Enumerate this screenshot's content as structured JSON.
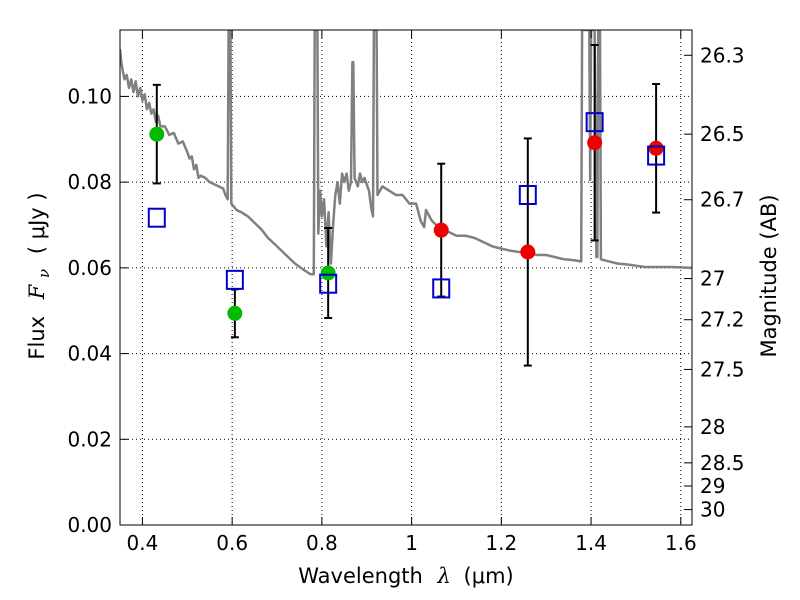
{
  "chart_data": {
    "type": "scatter",
    "title": "",
    "xlabel_text": "Wavelength",
    "xlabel_symbol": "λ",
    "xlabel_unit": "(μm)",
    "ylabel_text": "Flux",
    "ylabel_symbol": "F",
    "ylabel_sub": "ν",
    "ylabel_unit": "( μJy )",
    "ylabel_right": "Magnitude (AB)",
    "xlim": [
      0.35,
      1.625
    ],
    "ylim": [
      0.0,
      0.1155
    ],
    "grid": true,
    "x_ticks": [
      0.4,
      0.6,
      0.8,
      1.0,
      1.2,
      1.4,
      1.6
    ],
    "x_tick_labels": [
      "0.4",
      "0.6",
      "0.8",
      "1",
      "1.2",
      "1.4",
      "1.6"
    ],
    "y_ticks": [
      0.0,
      0.02,
      0.04,
      0.06,
      0.08,
      0.1
    ],
    "y_tick_labels": [
      "0.00",
      "0.02",
      "0.04",
      "0.06",
      "0.08",
      "0.10"
    ],
    "mag_ticks": [
      {
        "label": "26.3",
        "flux": 0.1096
      },
      {
        "label": "26.5",
        "flux": 0.0912
      },
      {
        "label": "26.7",
        "flux": 0.0759
      },
      {
        "label": "27",
        "flux": 0.0575
      },
      {
        "label": "27.2",
        "flux": 0.0479
      },
      {
        "label": "27.5",
        "flux": 0.0363
      },
      {
        "label": "28",
        "flux": 0.0229
      },
      {
        "label": "28.5",
        "flux": 0.0145
      },
      {
        "label": "29",
        "flux": 0.0091
      },
      {
        "label": "30",
        "flux": 0.0036
      }
    ],
    "colors": {
      "green": "#00bb00",
      "red": "#ee0000",
      "model": "#0000cc",
      "spectrum": "#808080",
      "errorbar": "#000000"
    },
    "series": [
      {
        "marker": "circle-green",
        "points": [
          {
            "x": 0.432,
            "y": 0.0912,
            "err_lo": 0.0115,
            "err_hi": 0.0115
          },
          {
            "x": 0.606,
            "y": 0.0494,
            "err_lo": 0.0056,
            "err_hi": 0.0056
          },
          {
            "x": 0.814,
            "y": 0.0588,
            "err_lo": 0.0105,
            "err_hi": 0.0105
          }
        ]
      },
      {
        "marker": "circle-red",
        "points": [
          {
            "x": 1.066,
            "y": 0.0688,
            "err_lo": 0.0155,
            "err_hi": 0.0155
          },
          {
            "x": 1.259,
            "y": 0.0637,
            "err_lo": 0.0265,
            "err_hi": 0.0265
          },
          {
            "x": 1.408,
            "y": 0.0892,
            "err_lo": 0.0228,
            "err_hi": 0.0228
          },
          {
            "x": 1.545,
            "y": 0.0879,
            "err_lo": 0.015,
            "err_hi": 0.015
          }
        ]
      },
      {
        "marker": "square-blue",
        "points": [
          {
            "x": 0.432,
            "y": 0.0717
          },
          {
            "x": 0.606,
            "y": 0.0572
          },
          {
            "x": 0.814,
            "y": 0.0563
          },
          {
            "x": 1.066,
            "y": 0.0552
          },
          {
            "x": 1.259,
            "y": 0.077
          },
          {
            "x": 1.408,
            "y": 0.094
          },
          {
            "x": 1.545,
            "y": 0.0862
          }
        ]
      },
      {
        "marker": "line-spectrum",
        "points": [
          {
            "x": 0.35,
            "y": 0.111
          },
          {
            "x": 0.353,
            "y": 0.108
          },
          {
            "x": 0.356,
            "y": 0.106
          },
          {
            "x": 0.36,
            "y": 0.104
          },
          {
            "x": 0.365,
            "y": 0.105
          },
          {
            "x": 0.37,
            "y": 0.102
          },
          {
            "x": 0.375,
            "y": 0.104
          },
          {
            "x": 0.38,
            "y": 0.101
          },
          {
            "x": 0.385,
            "y": 0.1035
          },
          {
            "x": 0.39,
            "y": 0.1
          },
          {
            "x": 0.395,
            "y": 0.102
          },
          {
            "x": 0.4,
            "y": 0.099
          },
          {
            "x": 0.405,
            "y": 0.1005
          },
          {
            "x": 0.41,
            "y": 0.097
          },
          {
            "x": 0.415,
            "y": 0.0985
          },
          {
            "x": 0.42,
            "y": 0.096
          },
          {
            "x": 0.425,
            "y": 0.097
          },
          {
            "x": 0.43,
            "y": 0.094
          },
          {
            "x": 0.435,
            "y": 0.0955
          },
          {
            "x": 0.44,
            "y": 0.093
          },
          {
            "x": 0.45,
            "y": 0.093
          },
          {
            "x": 0.46,
            "y": 0.091
          },
          {
            "x": 0.47,
            "y": 0.0915
          },
          {
            "x": 0.48,
            "y": 0.089
          },
          {
            "x": 0.49,
            "y": 0.0895
          },
          {
            "x": 0.5,
            "y": 0.087
          },
          {
            "x": 0.505,
            "y": 0.0855
          },
          {
            "x": 0.51,
            "y": 0.086
          },
          {
            "x": 0.515,
            "y": 0.083
          },
          {
            "x": 0.52,
            "y": 0.084
          },
          {
            "x": 0.525,
            "y": 0.081
          },
          {
            "x": 0.53,
            "y": 0.0815
          },
          {
            "x": 0.54,
            "y": 0.081
          },
          {
            "x": 0.55,
            "y": 0.08
          },
          {
            "x": 0.56,
            "y": 0.0795
          },
          {
            "x": 0.57,
            "y": 0.079
          },
          {
            "x": 0.58,
            "y": 0.0785
          },
          {
            "x": 0.585,
            "y": 0.077
          },
          {
            "x": 0.59,
            "y": 0.076
          },
          {
            "x": 0.592,
            "y": 0.1155
          },
          {
            "x": 0.596,
            "y": 0.1155
          },
          {
            "x": 0.598,
            "y": 0.075
          },
          {
            "x": 0.61,
            "y": 0.0735
          },
          {
            "x": 0.62,
            "y": 0.073
          },
          {
            "x": 0.635,
            "y": 0.072
          },
          {
            "x": 0.65,
            "y": 0.0705
          },
          {
            "x": 0.665,
            "y": 0.069
          },
          {
            "x": 0.68,
            "y": 0.067
          },
          {
            "x": 0.7,
            "y": 0.065
          },
          {
            "x": 0.72,
            "y": 0.063
          },
          {
            "x": 0.74,
            "y": 0.061
          },
          {
            "x": 0.76,
            "y": 0.0595
          },
          {
            "x": 0.775,
            "y": 0.0585
          },
          {
            "x": 0.782,
            "y": 0.0585
          },
          {
            "x": 0.784,
            "y": 0.1155
          },
          {
            "x": 0.79,
            "y": 0.1155
          },
          {
            "x": 0.792,
            "y": 0.068
          },
          {
            "x": 0.796,
            "y": 0.078
          },
          {
            "x": 0.8,
            "y": 0.072
          },
          {
            "x": 0.805,
            "y": 0.076
          },
          {
            "x": 0.81,
            "y": 0.065
          },
          {
            "x": 0.815,
            "y": 0.073
          },
          {
            "x": 0.82,
            "y": 0.061
          },
          {
            "x": 0.825,
            "y": 0.07
          },
          {
            "x": 0.83,
            "y": 0.077
          },
          {
            "x": 0.835,
            "y": 0.08
          },
          {
            "x": 0.84,
            "y": 0.075
          },
          {
            "x": 0.845,
            "y": 0.082
          },
          {
            "x": 0.85,
            "y": 0.08
          },
          {
            "x": 0.855,
            "y": 0.082
          },
          {
            "x": 0.86,
            "y": 0.078
          },
          {
            "x": 0.865,
            "y": 0.08
          },
          {
            "x": 0.868,
            "y": 0.108
          },
          {
            "x": 0.87,
            "y": 0.108
          },
          {
            "x": 0.873,
            "y": 0.081
          },
          {
            "x": 0.88,
            "y": 0.079
          },
          {
            "x": 0.885,
            "y": 0.082
          },
          {
            "x": 0.89,
            "y": 0.08
          },
          {
            "x": 0.895,
            "y": 0.081
          },
          {
            "x": 0.9,
            "y": 0.0795
          },
          {
            "x": 0.905,
            "y": 0.078
          },
          {
            "x": 0.91,
            "y": 0.074
          },
          {
            "x": 0.914,
            "y": 0.072
          },
          {
            "x": 0.916,
            "y": 0.1155
          },
          {
            "x": 0.922,
            "y": 0.1155
          },
          {
            "x": 0.924,
            "y": 0.077
          },
          {
            "x": 0.935,
            "y": 0.079
          },
          {
            "x": 0.95,
            "y": 0.078
          },
          {
            "x": 0.965,
            "y": 0.077
          },
          {
            "x": 0.98,
            "y": 0.077
          },
          {
            "x": 0.995,
            "y": 0.075
          },
          {
            "x": 1.01,
            "y": 0.075
          },
          {
            "x": 1.02,
            "y": 0.071
          },
          {
            "x": 1.028,
            "y": 0.0695
          },
          {
            "x": 1.032,
            "y": 0.0735
          },
          {
            "x": 1.045,
            "y": 0.071
          },
          {
            "x": 1.06,
            "y": 0.0695
          },
          {
            "x": 1.07,
            "y": 0.069
          },
          {
            "x": 1.08,
            "y": 0.0685
          },
          {
            "x": 1.1,
            "y": 0.0675
          },
          {
            "x": 1.12,
            "y": 0.0675
          },
          {
            "x": 1.14,
            "y": 0.067
          },
          {
            "x": 1.16,
            "y": 0.066
          },
          {
            "x": 1.18,
            "y": 0.065
          },
          {
            "x": 1.2,
            "y": 0.0645
          },
          {
            "x": 1.22,
            "y": 0.064
          },
          {
            "x": 1.24,
            "y": 0.0637
          },
          {
            "x": 1.26,
            "y": 0.0635
          },
          {
            "x": 1.28,
            "y": 0.063
          },
          {
            "x": 1.3,
            "y": 0.063
          },
          {
            "x": 1.32,
            "y": 0.0625
          },
          {
            "x": 1.34,
            "y": 0.062
          },
          {
            "x": 1.36,
            "y": 0.0618
          },
          {
            "x": 1.378,
            "y": 0.0615
          },
          {
            "x": 1.38,
            "y": 0.1155
          },
          {
            "x": 1.396,
            "y": 0.1155
          },
          {
            "x": 1.398,
            "y": 0.0805
          },
          {
            "x": 1.4,
            "y": 0.1155
          },
          {
            "x": 1.408,
            "y": 0.1155
          },
          {
            "x": 1.412,
            "y": 0.0625
          },
          {
            "x": 1.414,
            "y": 0.0625
          },
          {
            "x": 1.416,
            "y": 0.1155
          },
          {
            "x": 1.42,
            "y": 0.1155
          },
          {
            "x": 1.422,
            "y": 0.062
          },
          {
            "x": 1.44,
            "y": 0.0615
          },
          {
            "x": 1.46,
            "y": 0.061
          },
          {
            "x": 1.48,
            "y": 0.0608
          },
          {
            "x": 1.5,
            "y": 0.0605
          },
          {
            "x": 1.52,
            "y": 0.0602
          },
          {
            "x": 1.54,
            "y": 0.0602
          },
          {
            "x": 1.56,
            "y": 0.0602
          },
          {
            "x": 1.58,
            "y": 0.0602
          },
          {
            "x": 1.6,
            "y": 0.0601
          },
          {
            "x": 1.625,
            "y": 0.06
          }
        ]
      }
    ]
  }
}
